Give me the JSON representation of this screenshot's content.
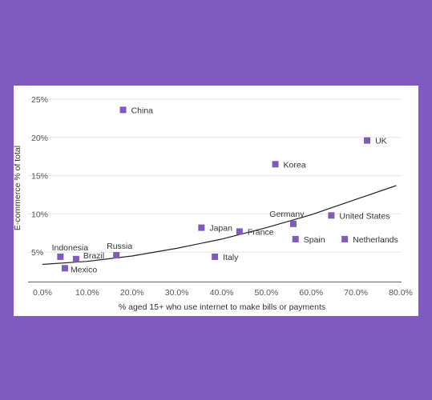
{
  "chart_data": {
    "type": "scatter",
    "xlabel": "% aged 15+ who use internet to make bills or payments",
    "ylabel": "E-commerce % of total",
    "xlim": [
      0,
      80
    ],
    "ylim": [
      0,
      25
    ],
    "xticks": [
      0,
      10,
      20,
      30,
      40,
      50,
      60,
      70,
      80
    ],
    "xtick_labels": [
      "0.0%",
      "10.0%",
      "20.0%",
      "30.0%",
      "40.0%",
      "50.0%",
      "60.0%",
      "70.0%",
      "80.0%"
    ],
    "yticks": [
      5,
      10,
      15,
      20,
      25
    ],
    "ytick_labels": [
      "5%",
      "10%",
      "15%",
      "20%",
      "25%"
    ],
    "grid": "horizontal",
    "point_color": "#7f5bbf",
    "points": [
      {
        "label": "China",
        "x": 18.0,
        "y": 23.6
      },
      {
        "label": "UK",
        "x": 72.5,
        "y": 19.6
      },
      {
        "label": "Korea",
        "x": 52.0,
        "y": 16.5
      },
      {
        "label": "Japan",
        "x": 35.5,
        "y": 8.2
      },
      {
        "label": "France",
        "x": 44.0,
        "y": 7.7
      },
      {
        "label": "Germany",
        "x": 56.0,
        "y": 8.7
      },
      {
        "label": "United States",
        "x": 64.5,
        "y": 9.8
      },
      {
        "label": "Spain",
        "x": 56.5,
        "y": 6.7
      },
      {
        "label": "Netherlands",
        "x": 67.5,
        "y": 6.7
      },
      {
        "label": "Italy",
        "x": 38.5,
        "y": 4.4
      },
      {
        "label": "Russia",
        "x": 16.5,
        "y": 4.6
      },
      {
        "label": "Indonesia",
        "x": 4.0,
        "y": 4.4
      },
      {
        "label": "Brazil",
        "x": 7.5,
        "y": 4.1
      },
      {
        "label": "Mexico",
        "x": 5.0,
        "y": 2.9
      }
    ],
    "trendline": {
      "type": "exponential",
      "points": [
        [
          0,
          3.4
        ],
        [
          10,
          3.8
        ],
        [
          20,
          4.5
        ],
        [
          30,
          5.5
        ],
        [
          40,
          6.7
        ],
        [
          50,
          8.2
        ],
        [
          60,
          9.9
        ],
        [
          70,
          11.9
        ],
        [
          79,
          13.7
        ]
      ]
    }
  }
}
